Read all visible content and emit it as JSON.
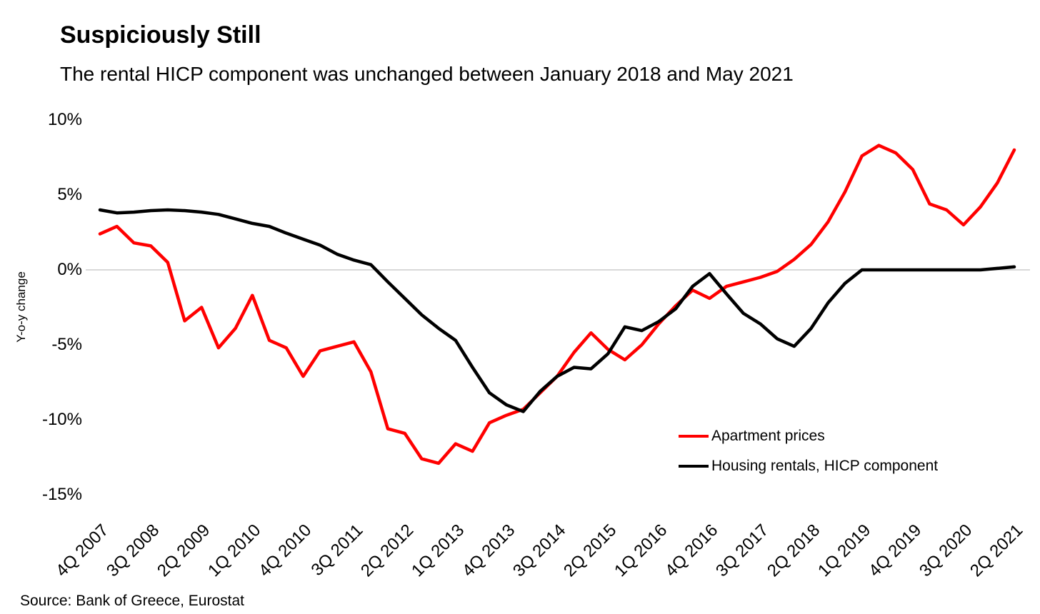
{
  "header": {
    "title": "Suspiciously Still",
    "subtitle": "The rental HICP component was unchanged between January 2018 and May 2021"
  },
  "source": "Source: Bank of Greece, Eurostat",
  "legend": [
    {
      "label": "Apartment prices",
      "color": "#ff0000"
    },
    {
      "label": "Housing rentals, HICP component",
      "color": "#000000"
    }
  ],
  "chart_data": {
    "type": "line",
    "title": "Suspiciously Still",
    "subtitle": "The rental HICP component was unchanged between January 2018 and May 2021",
    "xlabel": "",
    "ylabel": "Y-o-y change",
    "ylim": [
      -15,
      10
    ],
    "yticks": {
      "values": [
        10,
        5,
        0,
        -5,
        -10,
        -15
      ],
      "labels": [
        "10%",
        "5%",
        "0%",
        "-5%",
        "-10%",
        "-15%"
      ]
    },
    "grid": "horizontal line at 0% only",
    "legend_position": "center-right",
    "x_frequency": "quarterly",
    "x_start": "4Q 2007",
    "x_end": "2Q 2021",
    "xtick_labels": [
      "4Q 2007",
      "3Q 2008",
      "2Q 2009",
      "1Q 2010",
      "4Q 2010",
      "3Q 2011",
      "2Q 2012",
      "1Q 2013",
      "4Q 2013",
      "3Q 2014",
      "2Q 2015",
      "1Q 2016",
      "4Q 2016",
      "3Q 2017",
      "2Q 2018",
      "1Q 2019",
      "4Q 2019",
      "3Q 2020",
      "2Q 2021"
    ],
    "xtick_every_n_points": 3,
    "series": [
      {
        "name": "Apartment prices",
        "color": "#ff0000",
        "values": [
          2.4,
          2.9,
          1.8,
          1.6,
          0.5,
          -3.4,
          -2.5,
          -5.2,
          -3.9,
          -1.7,
          -4.7,
          -5.2,
          -7.1,
          -5.4,
          -5.1,
          -4.8,
          -6.8,
          -10.6,
          -10.9,
          -12.6,
          -12.9,
          -11.6,
          -12.1,
          -10.2,
          -9.7,
          -9.3,
          -8.2,
          -7.1,
          -5.5,
          -4.2,
          -5.3,
          -6.0,
          -5.0,
          -3.6,
          -2.4,
          -1.35,
          -1.9,
          -1.1,
          -0.8,
          -0.5,
          -0.1,
          0.7,
          1.7,
          3.2,
          5.2,
          7.6,
          8.3,
          7.8,
          6.7,
          4.4,
          4.0,
          3.0,
          4.2,
          5.8,
          8.0
        ]
      },
      {
        "name": "Housing rentals, HICP component",
        "color": "#000000",
        "values": [
          4.0,
          3.8,
          3.85,
          3.95,
          4.0,
          3.95,
          3.85,
          3.7,
          3.4,
          3.1,
          2.9,
          2.45,
          2.05,
          1.65,
          1.05,
          0.65,
          0.35,
          -0.8,
          -1.9,
          -3.0,
          -3.9,
          -4.7,
          -6.5,
          -8.2,
          -9.0,
          -9.45,
          -8.1,
          -7.1,
          -6.5,
          -6.6,
          -5.6,
          -3.8,
          -4.05,
          -3.45,
          -2.6,
          -1.1,
          -0.25,
          -1.6,
          -2.9,
          -3.6,
          -4.6,
          -5.1,
          -3.9,
          -2.2,
          -0.9,
          0.0,
          0.0,
          0.0,
          0.0,
          0.0,
          0.0,
          0.0,
          0.0,
          0.1,
          0.2
        ]
      }
    ]
  }
}
